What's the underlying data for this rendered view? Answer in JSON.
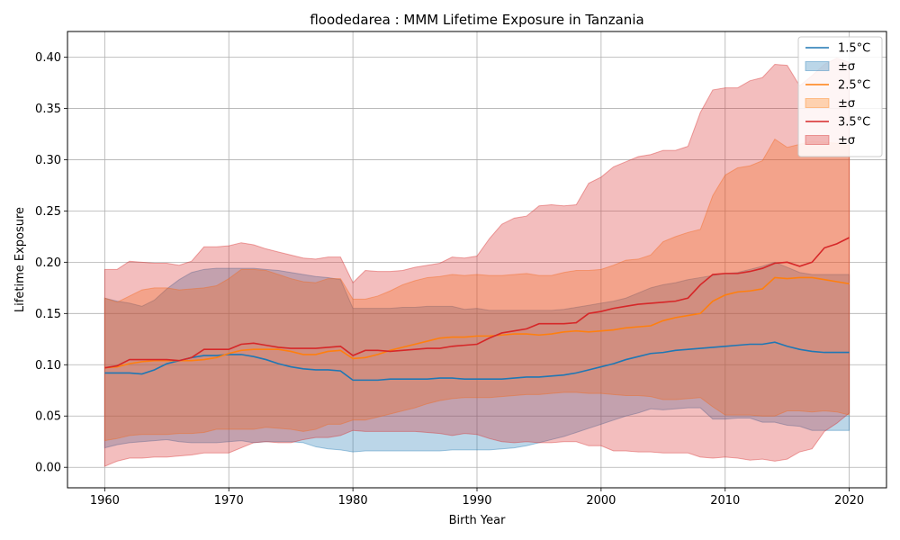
{
  "chart_data": {
    "type": "line",
    "title": "floodedarea : MMM Lifetime Exposure in Tanzania",
    "xlabel": "Birth Year",
    "ylabel": "Lifetime Exposure",
    "xlim": [
      1957,
      2023
    ],
    "ylim": [
      -0.02,
      0.425
    ],
    "xticks": [
      1960,
      1970,
      1980,
      1990,
      2000,
      2010,
      2020
    ],
    "yticks": [
      0.0,
      0.05,
      0.1,
      0.15,
      0.2,
      0.25,
      0.3,
      0.35,
      0.4
    ],
    "ytick_labels": [
      "0.00",
      "0.05",
      "0.10",
      "0.15",
      "0.20",
      "0.25",
      "0.30",
      "0.35",
      "0.40"
    ],
    "grid": true,
    "legend_position": "top-right",
    "x": [
      1960,
      1961,
      1962,
      1963,
      1964,
      1965,
      1966,
      1967,
      1968,
      1969,
      1970,
      1971,
      1972,
      1973,
      1974,
      1975,
      1976,
      1977,
      1978,
      1979,
      1980,
      1981,
      1982,
      1983,
      1984,
      1985,
      1986,
      1987,
      1988,
      1989,
      1990,
      1991,
      1992,
      1993,
      1994,
      1995,
      1996,
      1997,
      1998,
      1999,
      2000,
      2001,
      2002,
      2003,
      2004,
      2005,
      2006,
      2007,
      2008,
      2009,
      2010,
      2011,
      2012,
      2013,
      2014,
      2015,
      2016,
      2017,
      2018,
      2019,
      2020
    ],
    "series": [
      {
        "name": "1.5°C",
        "band_label": "±σ",
        "color": "#1f77b4",
        "band_color": "#1f77b4",
        "mean": [
          0.092,
          0.092,
          0.092,
          0.091,
          0.095,
          0.101,
          0.104,
          0.107,
          0.109,
          0.109,
          0.11,
          0.11,
          0.108,
          0.105,
          0.101,
          0.098,
          0.096,
          0.095,
          0.095,
          0.094,
          0.085,
          0.085,
          0.085,
          0.086,
          0.086,
          0.086,
          0.086,
          0.087,
          0.087,
          0.086,
          0.086,
          0.086,
          0.086,
          0.087,
          0.088,
          0.088,
          0.089,
          0.09,
          0.092,
          0.095,
          0.098,
          0.101,
          0.105,
          0.108,
          0.111,
          0.112,
          0.114,
          0.115,
          0.116,
          0.117,
          0.118,
          0.119,
          0.12,
          0.12,
          0.122,
          0.118,
          0.115,
          0.113,
          0.112,
          0.112,
          0.112
        ],
        "upper": [
          0.165,
          0.162,
          0.16,
          0.157,
          0.163,
          0.174,
          0.183,
          0.19,
          0.193,
          0.194,
          0.194,
          0.194,
          0.194,
          0.193,
          0.192,
          0.19,
          0.188,
          0.186,
          0.185,
          0.183,
          0.155,
          0.155,
          0.155,
          0.155,
          0.156,
          0.156,
          0.157,
          0.157,
          0.157,
          0.154,
          0.155,
          0.153,
          0.153,
          0.153,
          0.153,
          0.153,
          0.153,
          0.154,
          0.156,
          0.158,
          0.16,
          0.162,
          0.165,
          0.17,
          0.175,
          0.178,
          0.18,
          0.183,
          0.185,
          0.187,
          0.189,
          0.19,
          0.193,
          0.196,
          0.2,
          0.195,
          0.19,
          0.188,
          0.188,
          0.188,
          0.188
        ],
        "lower": [
          0.019,
          0.022,
          0.024,
          0.025,
          0.026,
          0.027,
          0.025,
          0.024,
          0.024,
          0.024,
          0.025,
          0.026,
          0.024,
          0.025,
          0.025,
          0.025,
          0.024,
          0.02,
          0.018,
          0.017,
          0.015,
          0.016,
          0.016,
          0.016,
          0.016,
          0.016,
          0.016,
          0.016,
          0.017,
          0.017,
          0.017,
          0.017,
          0.018,
          0.019,
          0.021,
          0.024,
          0.027,
          0.03,
          0.034,
          0.038,
          0.042,
          0.046,
          0.05,
          0.053,
          0.057,
          0.056,
          0.057,
          0.058,
          0.058,
          0.047,
          0.047,
          0.048,
          0.048,
          0.044,
          0.044,
          0.041,
          0.04,
          0.036,
          0.036,
          0.036,
          0.036
        ]
      },
      {
        "name": "2.5°C",
        "band_label": "±σ",
        "color": "#ff7f0e",
        "band_color": "#ff7f0e",
        "mean": [
          0.097,
          0.098,
          0.101,
          0.103,
          0.104,
          0.104,
          0.104,
          0.104,
          0.105,
          0.107,
          0.111,
          0.114,
          0.115,
          0.115,
          0.115,
          0.113,
          0.11,
          0.11,
          0.113,
          0.114,
          0.106,
          0.107,
          0.11,
          0.114,
          0.117,
          0.12,
          0.123,
          0.126,
          0.127,
          0.127,
          0.128,
          0.128,
          0.129,
          0.13,
          0.13,
          0.129,
          0.13,
          0.132,
          0.133,
          0.132,
          0.133,
          0.134,
          0.136,
          0.137,
          0.138,
          0.143,
          0.146,
          0.148,
          0.15,
          0.162,
          0.168,
          0.171,
          0.172,
          0.174,
          0.185,
          0.184,
          0.185,
          0.185,
          0.183,
          0.181,
          0.179
        ],
        "upper": [
          0.165,
          0.161,
          0.167,
          0.173,
          0.175,
          0.175,
          0.173,
          0.174,
          0.175,
          0.177,
          0.184,
          0.193,
          0.193,
          0.192,
          0.188,
          0.184,
          0.181,
          0.18,
          0.184,
          0.184,
          0.164,
          0.164,
          0.167,
          0.172,
          0.178,
          0.182,
          0.185,
          0.186,
          0.188,
          0.187,
          0.188,
          0.187,
          0.187,
          0.188,
          0.189,
          0.187,
          0.187,
          0.19,
          0.192,
          0.192,
          0.193,
          0.197,
          0.202,
          0.203,
          0.207,
          0.22,
          0.225,
          0.229,
          0.232,
          0.265,
          0.285,
          0.292,
          0.294,
          0.299,
          0.32,
          0.312,
          0.315,
          0.318,
          0.317,
          0.316,
          0.314
        ],
        "lower": [
          0.026,
          0.028,
          0.031,
          0.032,
          0.032,
          0.032,
          0.033,
          0.033,
          0.034,
          0.037,
          0.037,
          0.037,
          0.037,
          0.039,
          0.038,
          0.037,
          0.035,
          0.037,
          0.042,
          0.042,
          0.046,
          0.046,
          0.049,
          0.052,
          0.055,
          0.058,
          0.062,
          0.065,
          0.067,
          0.068,
          0.068,
          0.068,
          0.069,
          0.07,
          0.071,
          0.071,
          0.072,
          0.073,
          0.073,
          0.072,
          0.072,
          0.071,
          0.07,
          0.07,
          0.069,
          0.066,
          0.066,
          0.067,
          0.068,
          0.059,
          0.051,
          0.051,
          0.051,
          0.05,
          0.05,
          0.055,
          0.055,
          0.054,
          0.055,
          0.054,
          0.051
        ]
      },
      {
        "name": "3.5°C",
        "band_label": "±σ",
        "color": "#d62728",
        "band_color": "#d62728",
        "mean": [
          0.097,
          0.099,
          0.105,
          0.105,
          0.105,
          0.105,
          0.104,
          0.107,
          0.115,
          0.115,
          0.115,
          0.12,
          0.121,
          0.119,
          0.117,
          0.116,
          0.116,
          0.116,
          0.117,
          0.118,
          0.109,
          0.114,
          0.114,
          0.113,
          0.114,
          0.115,
          0.116,
          0.116,
          0.118,
          0.119,
          0.12,
          0.126,
          0.131,
          0.133,
          0.135,
          0.14,
          0.14,
          0.14,
          0.141,
          0.15,
          0.152,
          0.155,
          0.157,
          0.159,
          0.16,
          0.161,
          0.162,
          0.165,
          0.178,
          0.188,
          0.189,
          0.189,
          0.191,
          0.194,
          0.199,
          0.2,
          0.196,
          0.2,
          0.214,
          0.218,
          0.224
        ],
        "upper": [
          0.193,
          0.193,
          0.201,
          0.2,
          0.199,
          0.199,
          0.197,
          0.201,
          0.215,
          0.215,
          0.216,
          0.219,
          0.217,
          0.213,
          0.21,
          0.207,
          0.204,
          0.203,
          0.205,
          0.205,
          0.18,
          0.192,
          0.191,
          0.191,
          0.192,
          0.195,
          0.197,
          0.199,
          0.205,
          0.204,
          0.206,
          0.223,
          0.237,
          0.243,
          0.245,
          0.255,
          0.256,
          0.255,
          0.256,
          0.277,
          0.283,
          0.293,
          0.298,
          0.303,
          0.305,
          0.309,
          0.309,
          0.313,
          0.346,
          0.368,
          0.37,
          0.37,
          0.377,
          0.38,
          0.393,
          0.392,
          0.372,
          0.382,
          0.393,
          0.399,
          0.395
        ],
        "lower": [
          0.001,
          0.006,
          0.009,
          0.009,
          0.01,
          0.01,
          0.011,
          0.012,
          0.014,
          0.014,
          0.014,
          0.019,
          0.024,
          0.025,
          0.024,
          0.024,
          0.027,
          0.029,
          0.029,
          0.031,
          0.036,
          0.035,
          0.035,
          0.035,
          0.035,
          0.035,
          0.034,
          0.033,
          0.031,
          0.033,
          0.032,
          0.028,
          0.025,
          0.024,
          0.025,
          0.024,
          0.024,
          0.025,
          0.025,
          0.021,
          0.021,
          0.016,
          0.016,
          0.015,
          0.015,
          0.014,
          0.014,
          0.014,
          0.01,
          0.009,
          0.01,
          0.009,
          0.007,
          0.008,
          0.006,
          0.008,
          0.015,
          0.018,
          0.035,
          0.043,
          0.053
        ]
      }
    ]
  }
}
